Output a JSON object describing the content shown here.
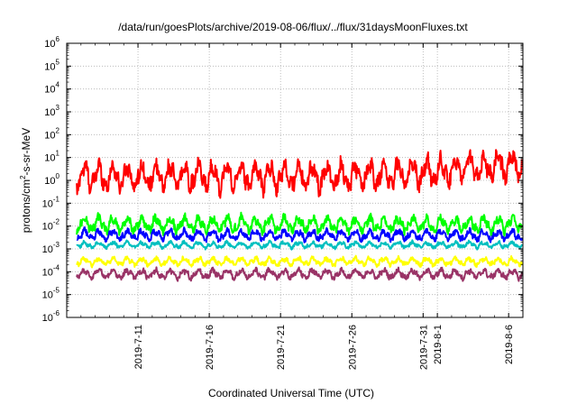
{
  "chart_data": {
    "type": "line",
    "title": "/data/run/goesPlots/archive/2019-08-06/flux/../flux/31daysMoonFluxes.txt",
    "xlabel": "Coordinated Universal Time (UTC)",
    "ylabel": {
      "base": "protons/cm",
      "sup": "2",
      "rest": "-s-sr-MeV"
    },
    "y_scale": "log",
    "ylim": [
      1e-06,
      1000000.0
    ],
    "y_ticks": [
      {
        "base": "10",
        "exp": "6",
        "value": 1000000.0
      },
      {
        "base": "10",
        "exp": "5",
        "value": 100000.0
      },
      {
        "base": "10",
        "exp": "4",
        "value": 10000.0
      },
      {
        "base": "10",
        "exp": "3",
        "value": 1000.0
      },
      {
        "base": "10",
        "exp": "2",
        "value": 100.0
      },
      {
        "base": "10",
        "exp": "1",
        "value": 10.0
      },
      {
        "base": "10",
        "exp": "0",
        "value": 1.0
      },
      {
        "base": "10",
        "exp": "-1",
        "value": 0.1
      },
      {
        "base": "10",
        "exp": "-2",
        "value": 0.01
      },
      {
        "base": "10",
        "exp": "-3",
        "value": 0.001
      },
      {
        "base": "10",
        "exp": "-4",
        "value": 0.0001
      },
      {
        "base": "10",
        "exp": "-5",
        "value": 1e-05
      },
      {
        "base": "10",
        "exp": "-6",
        "value": 1e-06
      }
    ],
    "xlim": [
      "2019-07-06",
      "2019-08-07"
    ],
    "x_ticks": [
      {
        "label": "2019-7-11",
        "date": "2019-07-11"
      },
      {
        "label": "2019-7-16",
        "date": "2019-07-16"
      },
      {
        "label": "2019-7-21",
        "date": "2019-07-21"
      },
      {
        "label": "2019-7-26",
        "date": "2019-07-26"
      },
      {
        "label": "2019-7-31",
        "date": "2019-07-31"
      },
      {
        "label": "2019-8-1",
        "date": "2019-08-01"
      },
      {
        "label": "2019-8-6",
        "date": "2019-08-06"
      }
    ],
    "grid": true,
    "series": [
      {
        "color": "#ff0000",
        "median": 1.5,
        "amplitude_decades": 0.55,
        "trend_end": 5
      },
      {
        "color": "#00ff00",
        "median": 0.012,
        "amplitude_decades": 0.3,
        "trend_end": 0.012
      },
      {
        "color": "#0000ff",
        "median": 0.004,
        "amplitude_decades": 0.2,
        "trend_end": 0.004
      },
      {
        "color": "#00bfbf",
        "median": 0.0015,
        "amplitude_decades": 0.12,
        "trend_end": 0.0015
      },
      {
        "color": "#ffff00",
        "median": 0.00028,
        "amplitude_decades": 0.15,
        "trend_end": 0.00028
      },
      {
        "color": "#993366",
        "median": 8e-05,
        "amplitude_decades": 0.18,
        "trend_end": 8e-05
      }
    ]
  }
}
